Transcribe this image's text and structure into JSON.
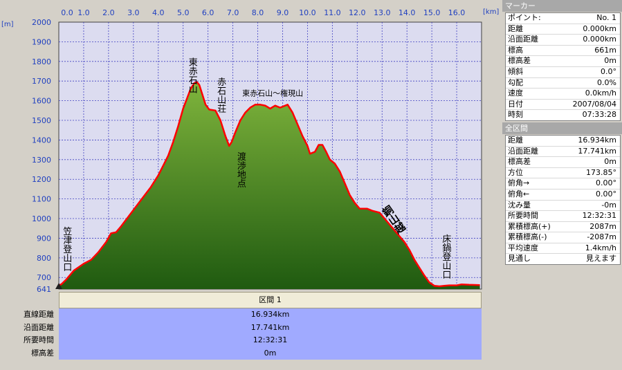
{
  "chart_data": {
    "type": "area",
    "x_unit": "[km]",
    "y_unit": "[m]",
    "xlim": [
      0,
      16.934
    ],
    "ylim": [
      641,
      2000
    ],
    "x_ticks": [
      "0.0",
      "1.0",
      "2.0",
      "3.0",
      "4.0",
      "5.0",
      "6.0",
      "7.0",
      "8.0",
      "9.0",
      "10.0",
      "11.0",
      "12.0",
      "13.0",
      "14.0",
      "15.0",
      "16.0"
    ],
    "y_ticks": [
      "2000",
      "1900",
      "1800",
      "1700",
      "1600",
      "1500",
      "1400",
      "1300",
      "1200",
      "1100",
      "1000",
      "900",
      "800",
      "700",
      "641"
    ],
    "colors": {
      "fill_top": "#7fb43c",
      "fill_bottom": "#1f5a10",
      "line": "#ff0000",
      "plot_bg": "#dcdcf0",
      "grid": "#4040c0"
    },
    "profile": [
      [
        0.0,
        661
      ],
      [
        0.1,
        665
      ],
      [
        0.3,
        690
      ],
      [
        0.6,
        735
      ],
      [
        1.0,
        770
      ],
      [
        1.3,
        790
      ],
      [
        1.6,
        830
      ],
      [
        1.9,
        880
      ],
      [
        2.1,
        925
      ],
      [
        2.3,
        930
      ],
      [
        2.5,
        960
      ],
      [
        2.8,
        1010
      ],
      [
        3.1,
        1060
      ],
      [
        3.4,
        1110
      ],
      [
        3.7,
        1160
      ],
      [
        4.0,
        1220
      ],
      [
        4.2,
        1270
      ],
      [
        4.4,
        1320
      ],
      [
        4.6,
        1390
      ],
      [
        4.8,
        1470
      ],
      [
        5.0,
        1560
      ],
      [
        5.15,
        1610
      ],
      [
        5.3,
        1660
      ],
      [
        5.45,
        1690
      ],
      [
        5.55,
        1695
      ],
      [
        5.65,
        1680
      ],
      [
        5.8,
        1620
      ],
      [
        5.9,
        1580
      ],
      [
        6.05,
        1555
      ],
      [
        6.3,
        1550
      ],
      [
        6.5,
        1500
      ],
      [
        6.7,
        1420
      ],
      [
        6.85,
        1370
      ],
      [
        6.95,
        1390
      ],
      [
        7.1,
        1440
      ],
      [
        7.3,
        1500
      ],
      [
        7.5,
        1540
      ],
      [
        7.7,
        1565
      ],
      [
        7.9,
        1580
      ],
      [
        8.1,
        1580
      ],
      [
        8.3,
        1575
      ],
      [
        8.5,
        1560
      ],
      [
        8.7,
        1575
      ],
      [
        8.9,
        1565
      ],
      [
        9.2,
        1580
      ],
      [
        9.4,
        1540
      ],
      [
        9.6,
        1480
      ],
      [
        9.8,
        1420
      ],
      [
        10.0,
        1370
      ],
      [
        10.1,
        1330
      ],
      [
        10.3,
        1340
      ],
      [
        10.45,
        1375
      ],
      [
        10.6,
        1375
      ],
      [
        10.75,
        1340
      ],
      [
        10.9,
        1300
      ],
      [
        11.1,
        1280
      ],
      [
        11.3,
        1240
      ],
      [
        11.5,
        1180
      ],
      [
        11.7,
        1120
      ],
      [
        11.9,
        1080
      ],
      [
        12.1,
        1050
      ],
      [
        12.4,
        1050
      ],
      [
        12.6,
        1040
      ],
      [
        12.9,
        1030
      ],
      [
        13.1,
        1000
      ],
      [
        13.3,
        970
      ],
      [
        13.5,
        940
      ],
      [
        13.7,
        910
      ],
      [
        13.9,
        880
      ],
      [
        14.1,
        840
      ],
      [
        14.3,
        790
      ],
      [
        14.5,
        750
      ],
      [
        14.7,
        710
      ],
      [
        14.9,
        675
      ],
      [
        15.1,
        658
      ],
      [
        15.3,
        655
      ],
      [
        15.5,
        658
      ],
      [
        15.7,
        660
      ],
      [
        16.0,
        660
      ],
      [
        16.2,
        665
      ],
      [
        16.5,
        663
      ],
      [
        16.934,
        661
      ]
    ],
    "annotations": [
      {
        "text": "東赤石山",
        "x": 5.35,
        "elev": 1820,
        "orient": "vertical"
      },
      {
        "text": "赤石山荘",
        "x": 6.5,
        "elev": 1720,
        "orient": "vertical"
      },
      {
        "text": "東赤石山〜権現山",
        "x": 8.6,
        "elev": 1625,
        "orient": "horizontal"
      },
      {
        "text": "渡渉地点",
        "x": 7.3,
        "elev": 1340,
        "orient": "vertical"
      },
      {
        "text": "笠津登山口",
        "x": 0.3,
        "elev": 960,
        "orient": "vertical"
      },
      {
        "text": "床鍋登山口",
        "x": 15.55,
        "elev": 920,
        "orient": "vertical"
      },
      {
        "text": "銅山越",
        "x": 13.1,
        "elev": 1060,
        "orient": "diagonal"
      }
    ]
  },
  "marker_panel": {
    "title": "マーカー",
    "rows": [
      {
        "label": "ポイント:",
        "value": "No. 1"
      },
      {
        "label": "距離",
        "value": "0.000km"
      },
      {
        "label": "沿面距離",
        "value": "0.000km"
      },
      {
        "label": "標高",
        "value": "661m"
      },
      {
        "label": "標高差",
        "value": "0m"
      },
      {
        "label": "傾斜",
        "value": "0.0°"
      },
      {
        "label": "勾配",
        "value": "0.0%"
      },
      {
        "label": "速度",
        "value": "0.0km/h"
      },
      {
        "label": "日付",
        "value": "2007/08/04"
      },
      {
        "label": "時刻",
        "value": "07:33:28"
      }
    ]
  },
  "section_panel": {
    "title": "全区間",
    "rows": [
      {
        "label": "距離",
        "value": "16.934km"
      },
      {
        "label": "沿面距離",
        "value": "17.741km"
      },
      {
        "label": "標高差",
        "value": "0m"
      },
      {
        "label": "方位",
        "value": "173.85°"
      },
      {
        "label": "俯角→",
        "value": "0.00°"
      },
      {
        "label": "俯角←",
        "value": "0.00°"
      },
      {
        "label": "沈み量",
        "value": "-0m"
      },
      {
        "label": "所要時間",
        "value": "12:32:31"
      },
      {
        "label": "累積標高(+)",
        "value": "2087m"
      },
      {
        "label": "累積標高(-)",
        "value": "-2087m"
      },
      {
        "label": "平均速度",
        "value": "1.4km/h"
      },
      {
        "label": "見通し",
        "value": "見えます"
      }
    ]
  },
  "segment": {
    "header": "区間 1",
    "labels": [
      "直線距離",
      "沿面距離",
      "所要時間",
      "標高差"
    ],
    "values": [
      "16.934km",
      "17.741km",
      "12:32:31",
      "0m"
    ]
  }
}
